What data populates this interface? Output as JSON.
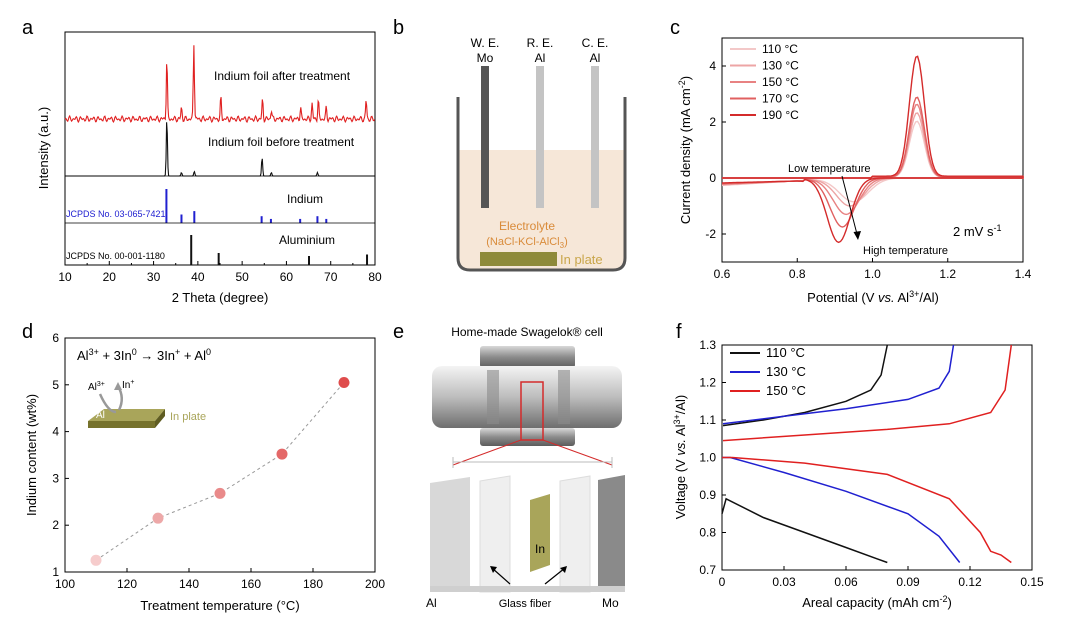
{
  "panel_letters": {
    "a": "a",
    "b": "b",
    "c": "c",
    "d": "d",
    "e": "e",
    "f": "f"
  },
  "colors": {
    "red": "#e02020",
    "black": "#111111",
    "blue": "#2020d0",
    "salmon": "#e06060",
    "olive": "#8e8a3a",
    "electrolyte": "#f6e7d8",
    "electrolyte_text": "#d98b3a",
    "inplate_text": "#c9a64a"
  },
  "panel_a": {
    "ylabel": "Intensity (a.u.)",
    "xlabel": "2 Theta (degree)",
    "labels": {
      "after": "Indium foil after treatment",
      "before": "Indium foil before treatment",
      "indium": "Indium",
      "jcpds_in": "JCPDS No. 03-065-7421",
      "aluminium": "Aluminium",
      "jcpds_al": "JCPDS No. 00-001-1180"
    }
  },
  "panel_b": {
    "electrodes": {
      "we1": "W. E.",
      "we2": "Mo",
      "re1": "R. E.",
      "re2": "Al",
      "ce1": "C. E.",
      "ce2": "Al"
    },
    "electrolyte1": "Electrolyte",
    "electrolyte2": "(NaCl-KCl-AlCl",
    "electrolyte2_sub": "3",
    "electrolyte2_end": ")",
    "inplate": "In plate"
  },
  "panel_c": {
    "ylabel_a": "Current density (mA cm",
    "ylabel_sup": "-2",
    "ylabel_b": ")",
    "xlabel_a": "Potential (V ",
    "xlabel_vs": "vs.",
    "xlabel_b": " Al",
    "xlabel_sup": "3+",
    "xlabel_c": "/Al)",
    "annot_low": "Low temperature",
    "annot_high": "High temperature",
    "rate": "2 mV s",
    "rate_sup": "-1"
  },
  "panel_d": {
    "ylabel": "Indium content (wt%)",
    "xlabel": "Treatment temperature (°C)",
    "equation": "Al3+ + 3In0 → 3In+ + Al0",
    "eq_parts": [
      "Al",
      "3+",
      " + 3In",
      "0",
      " → 3In",
      "+",
      " + Al",
      "0"
    ],
    "inset": {
      "al": "Al",
      "al_sup": "3+",
      "in": "In",
      "in_sup": "+",
      "al2": "Al",
      "plate": "In plate"
    }
  },
  "panel_e": {
    "title": "Home-made Swagelok® cell",
    "labels": {
      "in": "In",
      "al": "Al",
      "glass": "Glass fiber",
      "mo": "Mo"
    }
  },
  "panel_f": {
    "ylabel_a": "Voltage (V ",
    "ylabel_vs": "vs.",
    "ylabel_b": " Al",
    "ylabel_sup": "3+",
    "ylabel_c": "/Al)",
    "xlabel_a": "Areal capacity (mAh cm",
    "xlabel_sup": "-2",
    "xlabel_b": ")"
  },
  "chart_data": [
    {
      "type": "line",
      "panel": "a",
      "xlabel": "2 Theta (degree)",
      "ylabel": "Intensity (a.u.)",
      "xlim": [
        10,
        80
      ],
      "xticks": [
        10,
        20,
        30,
        40,
        50,
        60,
        70,
        80
      ],
      "series": [
        {
          "name": "Indium foil after treatment",
          "color": "#e02020",
          "peaks": [
            [
              33.0,
              0.8
            ],
            [
              36.3,
              0.15
            ],
            [
              39.1,
              1.0
            ],
            [
              45.2,
              0.28
            ],
            [
              54.6,
              0.25
            ],
            [
              56.6,
              0.12
            ],
            [
              63.2,
              0.15
            ],
            [
              65.8,
              0.2
            ],
            [
              67.2,
              0.25
            ],
            [
              69.0,
              0.15
            ],
            [
              78.0,
              0.25
            ]
          ]
        },
        {
          "name": "Indium foil before treatment",
          "color": "#111111",
          "peaks": [
            [
              33.0,
              1.0
            ],
            [
              36.3,
              0.06
            ],
            [
              39.2,
              0.08
            ],
            [
              54.5,
              0.32
            ],
            [
              56.6,
              0.06
            ],
            [
              67.0,
              0.06
            ]
          ]
        },
        {
          "name": "Indium",
          "color": "#2020d0",
          "sticks": [
            [
              32.9,
              1.0
            ],
            [
              36.3,
              0.25
            ],
            [
              39.2,
              0.35
            ],
            [
              54.4,
              0.2
            ],
            [
              56.5,
              0.12
            ],
            [
              63.1,
              0.12
            ],
            [
              67.0,
              0.2
            ],
            [
              69.0,
              0.12
            ]
          ]
        },
        {
          "name": "Aluminium",
          "color": "#111111",
          "sticks": [
            [
              38.5,
              1.0
            ],
            [
              44.7,
              0.4
            ],
            [
              65.1,
              0.3
            ],
            [
              78.2,
              0.35
            ]
          ]
        }
      ]
    },
    {
      "type": "line",
      "panel": "c",
      "xlim": [
        0.6,
        1.4
      ],
      "ylim": [
        -3,
        5
      ],
      "xticks": [
        0.6,
        0.8,
        1.0,
        1.2,
        1.4
      ],
      "yticks": [
        -2,
        0,
        2,
        4
      ],
      "series": [
        {
          "name": "110 °C",
          "color": "#f3c8c8",
          "peak": 2.0,
          "min": -0.85
        },
        {
          "name": "130 °C",
          "color": "#eda5a5",
          "peak": 2.3,
          "min": -1.0
        },
        {
          "name": "150 °C",
          "color": "#e88282",
          "peak": 2.6,
          "min": -1.3
        },
        {
          "name": "170 °C",
          "color": "#e06060",
          "peak": 2.85,
          "min": -1.75
        },
        {
          "name": "190 °C",
          "color": "#d42b2b",
          "peak": 4.3,
          "min": -2.3
        }
      ]
    },
    {
      "type": "scatter",
      "panel": "d",
      "xlim": [
        100,
        200
      ],
      "ylim": [
        1,
        6
      ],
      "xticks": [
        100,
        120,
        140,
        160,
        180,
        200
      ],
      "yticks": [
        1,
        2,
        3,
        4,
        5,
        6
      ],
      "x": [
        110,
        130,
        150,
        170,
        190
      ],
      "y": [
        1.25,
        2.15,
        2.68,
        3.52,
        5.05
      ],
      "colors": [
        "#f6cccc",
        "#eda8a8",
        "#e98a8a",
        "#e46868",
        "#df4c4c"
      ]
    },
    {
      "type": "line",
      "panel": "f",
      "xlim": [
        0,
        0.15
      ],
      "ylim": [
        0.7,
        1.3
      ],
      "xticks": [
        0,
        0.03,
        0.06,
        0.09,
        0.12,
        0.15
      ],
      "yticks": [
        0.7,
        0.8,
        0.9,
        1.0,
        1.1,
        1.2,
        1.3
      ],
      "series": [
        {
          "name": "110 °C",
          "color": "#111111",
          "charge": [
            [
              0.0005,
              1.085
            ],
            [
              0.02,
              1.1
            ],
            [
              0.04,
              1.12
            ],
            [
              0.06,
              1.15
            ],
            [
              0.072,
              1.18
            ],
            [
              0.077,
              1.22
            ],
            [
              0.08,
              1.3
            ]
          ],
          "discharge": [
            [
              0,
              0.85
            ],
            [
              0.002,
              0.89
            ],
            [
              0.02,
              0.84
            ],
            [
              0.04,
              0.8
            ],
            [
              0.06,
              0.76
            ],
            [
              0.075,
              0.73
            ],
            [
              0.08,
              0.72
            ]
          ]
        },
        {
          "name": "130 °C",
          "color": "#2020d0",
          "charge": [
            [
              0.0005,
              1.09
            ],
            [
              0.03,
              1.11
            ],
            [
              0.06,
              1.13
            ],
            [
              0.09,
              1.155
            ],
            [
              0.105,
              1.185
            ],
            [
              0.11,
              1.23
            ],
            [
              0.112,
              1.3
            ]
          ],
          "discharge": [
            [
              0,
              1.0
            ],
            [
              0.004,
              1.0
            ],
            [
              0.03,
              0.96
            ],
            [
              0.06,
              0.91
            ],
            [
              0.09,
              0.85
            ],
            [
              0.105,
              0.79
            ],
            [
              0.115,
              0.72
            ]
          ]
        },
        {
          "name": "150 °C",
          "color": "#e02020",
          "charge": [
            [
              0.0005,
              1.045
            ],
            [
              0.04,
              1.06
            ],
            [
              0.08,
              1.075
            ],
            [
              0.11,
              1.09
            ],
            [
              0.13,
              1.12
            ],
            [
              0.137,
              1.18
            ],
            [
              0.14,
              1.3
            ]
          ],
          "discharge": [
            [
              0,
              1.0
            ],
            [
              0.005,
              1.0
            ],
            [
              0.04,
              0.985
            ],
            [
              0.08,
              0.955
            ],
            [
              0.11,
              0.89
            ],
            [
              0.125,
              0.8
            ],
            [
              0.13,
              0.75
            ],
            [
              0.135,
              0.74
            ],
            [
              0.14,
              0.72
            ]
          ]
        }
      ]
    }
  ]
}
